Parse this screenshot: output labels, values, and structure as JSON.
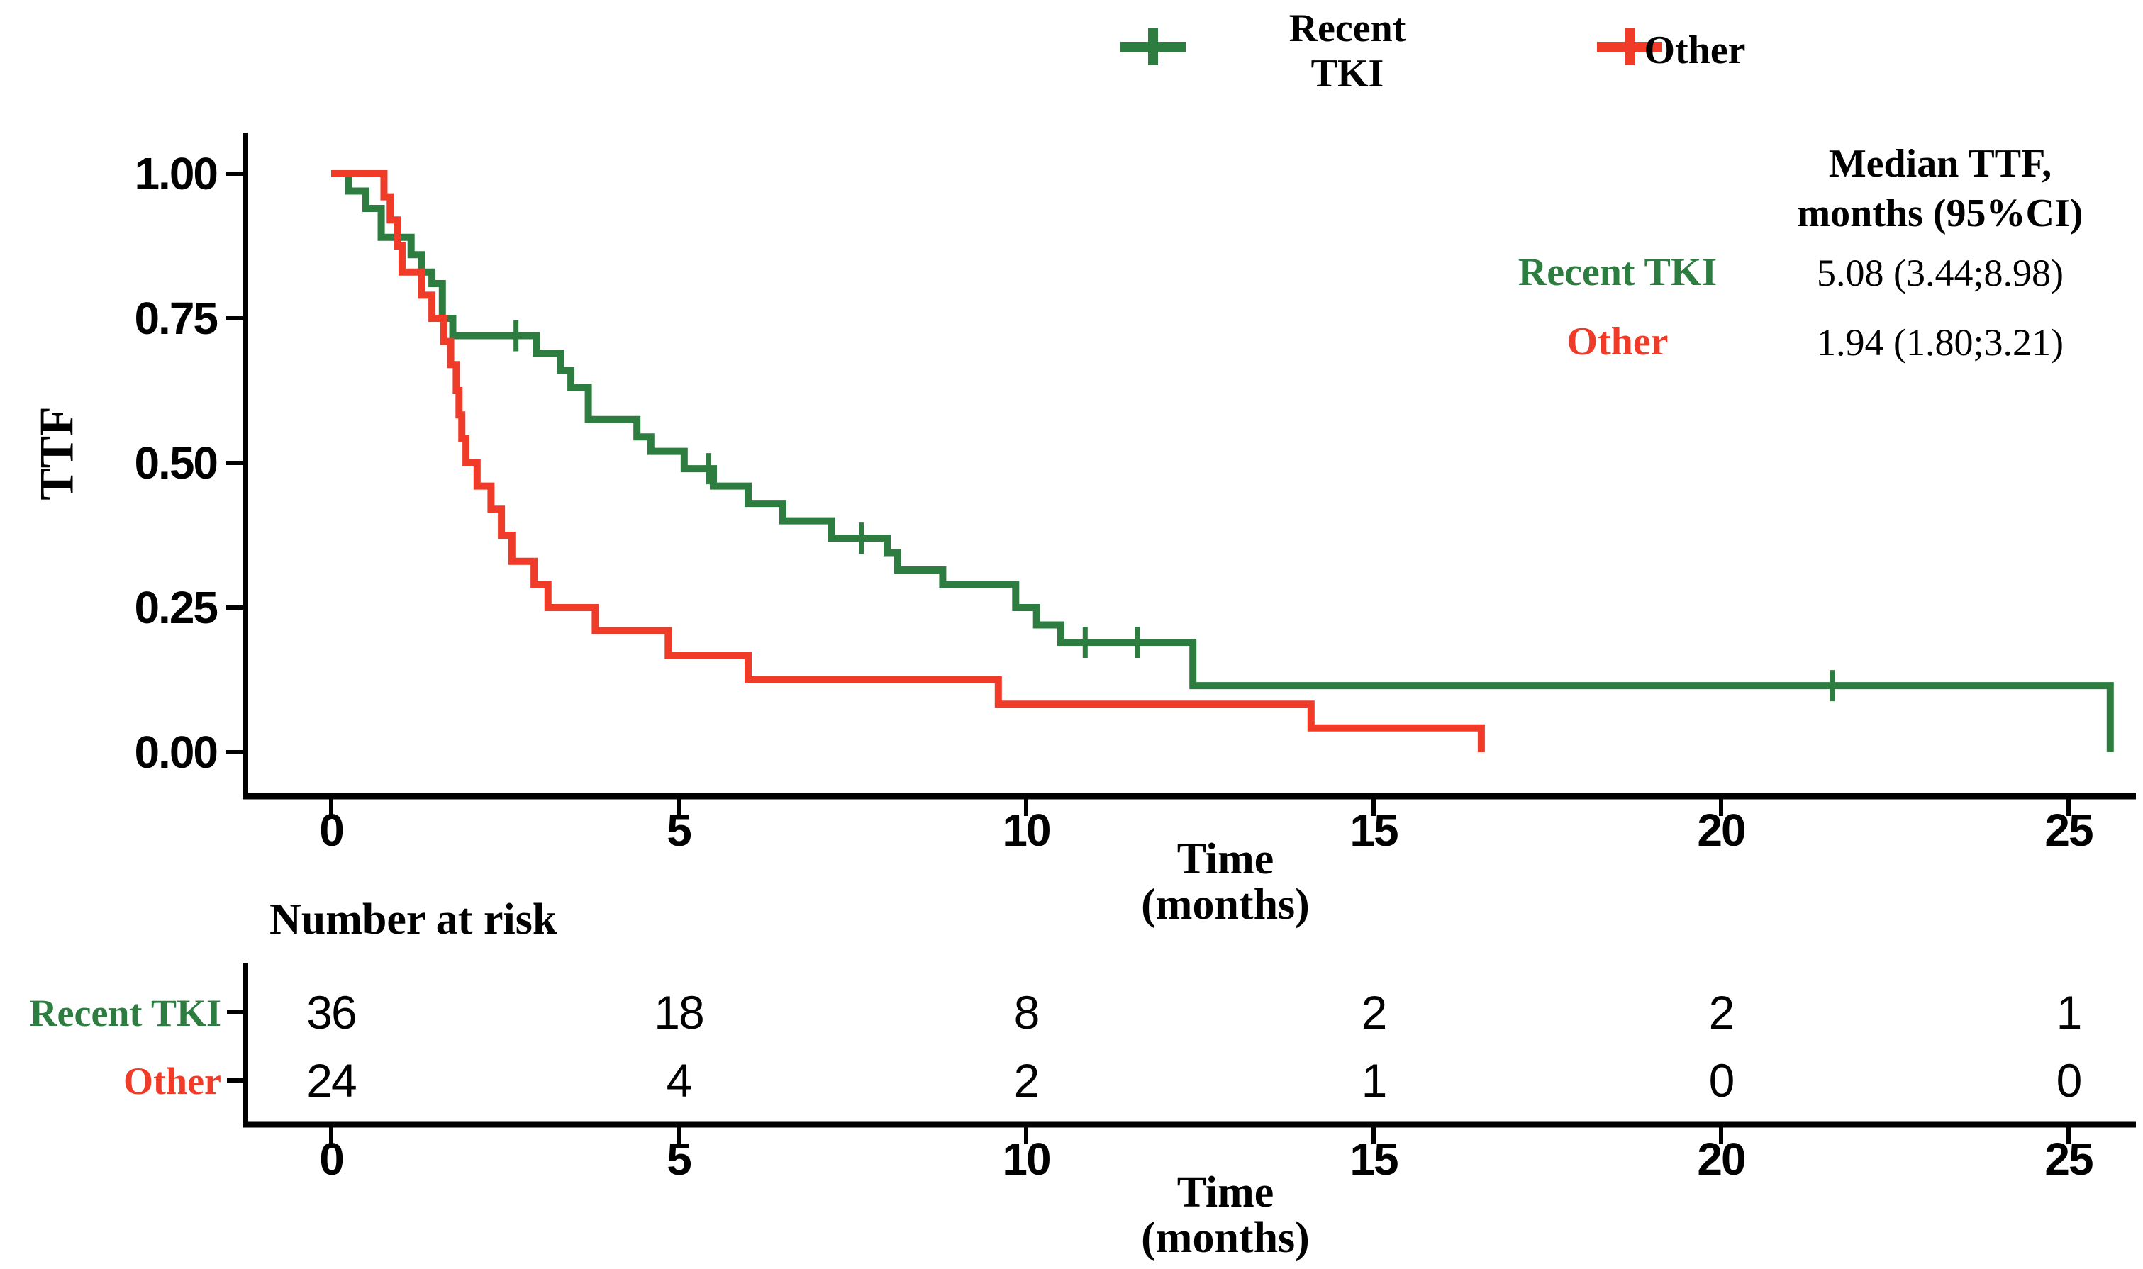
{
  "legend": {
    "items": [
      {
        "label_lines": [
          "Recent",
          "TKI"
        ],
        "color": "#2e7d40"
      },
      {
        "label_lines": [
          "Other"
        ],
        "color": "#ef3b28"
      }
    ]
  },
  "median_table": {
    "header_line1": "Median TTF,",
    "header_line2": "months (95%CI)",
    "rows": [
      {
        "label": "Recent TKI",
        "color": "#2e7d40",
        "value": "5.08 (3.44;8.98)"
      },
      {
        "label": "Other",
        "color": "#ef3b28",
        "value": "1.94 (1.80;3.21)"
      }
    ]
  },
  "axes": {
    "y_title": "TTF",
    "y_tick_labels": [
      "1.00",
      "0.75",
      "0.50",
      "0.25",
      "0.00"
    ],
    "x_tick_labels": [
      "0",
      "5",
      "10",
      "15",
      "20",
      "25"
    ],
    "x_title_line1": "Time",
    "x_title_line2": "(months)"
  },
  "risk_table": {
    "title": "Number at risk",
    "times": [
      0,
      5,
      10,
      15,
      20,
      25
    ],
    "x_tick_labels": [
      "0",
      "5",
      "10",
      "15",
      "20",
      "25"
    ],
    "x_title_line1": "Time",
    "x_title_line2": "(months)",
    "rows": [
      {
        "label": "Recent TKI",
        "color": "#2e7d40",
        "counts": [
          "36",
          "18",
          "8",
          "2",
          "2",
          "1"
        ]
      },
      {
        "label": "Other",
        "color": "#ef3b28",
        "counts": [
          "24",
          "4",
          "2",
          "1",
          "0",
          "0"
        ]
      }
    ]
  },
  "chart_data": {
    "type": "line",
    "subtype": "kaplan-meier-step",
    "title": "",
    "xlabel": "Time (months)",
    "ylabel": "TTF",
    "xlim": [
      0,
      25.8
    ],
    "ylim": [
      0,
      1.0
    ],
    "x_tick_values": [
      0,
      5,
      10,
      15,
      20,
      25
    ],
    "y_tick_values": [
      1.0,
      0.75,
      0.5,
      0.25,
      0.0
    ],
    "grid": false,
    "legend_position": "top-center",
    "series": [
      {
        "name": "Recent TKI",
        "color": "#2e7d40",
        "n": 36,
        "median_months_95ci": "5.08 (3.44;8.98)",
        "points": [
          [
            0,
            1.0
          ],
          [
            0.25,
            0.97
          ],
          [
            0.5,
            0.94
          ],
          [
            0.72,
            0.89
          ],
          [
            1.15,
            0.86
          ],
          [
            1.3,
            0.83
          ],
          [
            1.45,
            0.81
          ],
          [
            1.6,
            0.75
          ],
          [
            1.75,
            0.72
          ],
          [
            2.95,
            0.69
          ],
          [
            3.3,
            0.66
          ],
          [
            3.45,
            0.63
          ],
          [
            3.7,
            0.575
          ],
          [
            4.4,
            0.545
          ],
          [
            4.6,
            0.52
          ],
          [
            5.08,
            0.49
          ],
          [
            5.5,
            0.46
          ],
          [
            6.0,
            0.43
          ],
          [
            6.5,
            0.4
          ],
          [
            7.2,
            0.37
          ],
          [
            8.0,
            0.345
          ],
          [
            8.15,
            0.315
          ],
          [
            8.8,
            0.29
          ],
          [
            9.85,
            0.25
          ],
          [
            10.15,
            0.22
          ],
          [
            10.5,
            0.19
          ],
          [
            12.4,
            0.115
          ],
          [
            25.6,
            0.0
          ]
        ],
        "censor_marks": [
          [
            2.66,
            0.72
          ],
          [
            5.43,
            0.49
          ],
          [
            7.63,
            0.37
          ],
          [
            10.85,
            0.19
          ],
          [
            11.6,
            0.19
          ],
          [
            21.6,
            0.115
          ]
        ]
      },
      {
        "name": "Other",
        "color": "#ef3b28",
        "n": 24,
        "median_months_95ci": "1.94 (1.80;3.21)",
        "points": [
          [
            0,
            1.0
          ],
          [
            0.76,
            0.96
          ],
          [
            0.85,
            0.92
          ],
          [
            0.95,
            0.875
          ],
          [
            1.02,
            0.83
          ],
          [
            1.3,
            0.79
          ],
          [
            1.45,
            0.75
          ],
          [
            1.62,
            0.71
          ],
          [
            1.72,
            0.67
          ],
          [
            1.8,
            0.625
          ],
          [
            1.84,
            0.583
          ],
          [
            1.88,
            0.542
          ],
          [
            1.94,
            0.5
          ],
          [
            2.1,
            0.46
          ],
          [
            2.3,
            0.42
          ],
          [
            2.45,
            0.375
          ],
          [
            2.6,
            0.33
          ],
          [
            2.92,
            0.29
          ],
          [
            3.12,
            0.25
          ],
          [
            3.8,
            0.21
          ],
          [
            4.85,
            0.167
          ],
          [
            6.0,
            0.125
          ],
          [
            9.6,
            0.083
          ],
          [
            14.1,
            0.042
          ],
          [
            16.55,
            0.0
          ]
        ],
        "censor_marks": []
      }
    ],
    "number_at_risk": {
      "times": [
        0,
        5,
        10,
        15,
        20,
        25
      ],
      "Recent TKI": [
        36,
        18,
        8,
        2,
        2,
        1
      ],
      "Other": [
        24,
        4,
        2,
        1,
        0,
        0
      ]
    }
  }
}
